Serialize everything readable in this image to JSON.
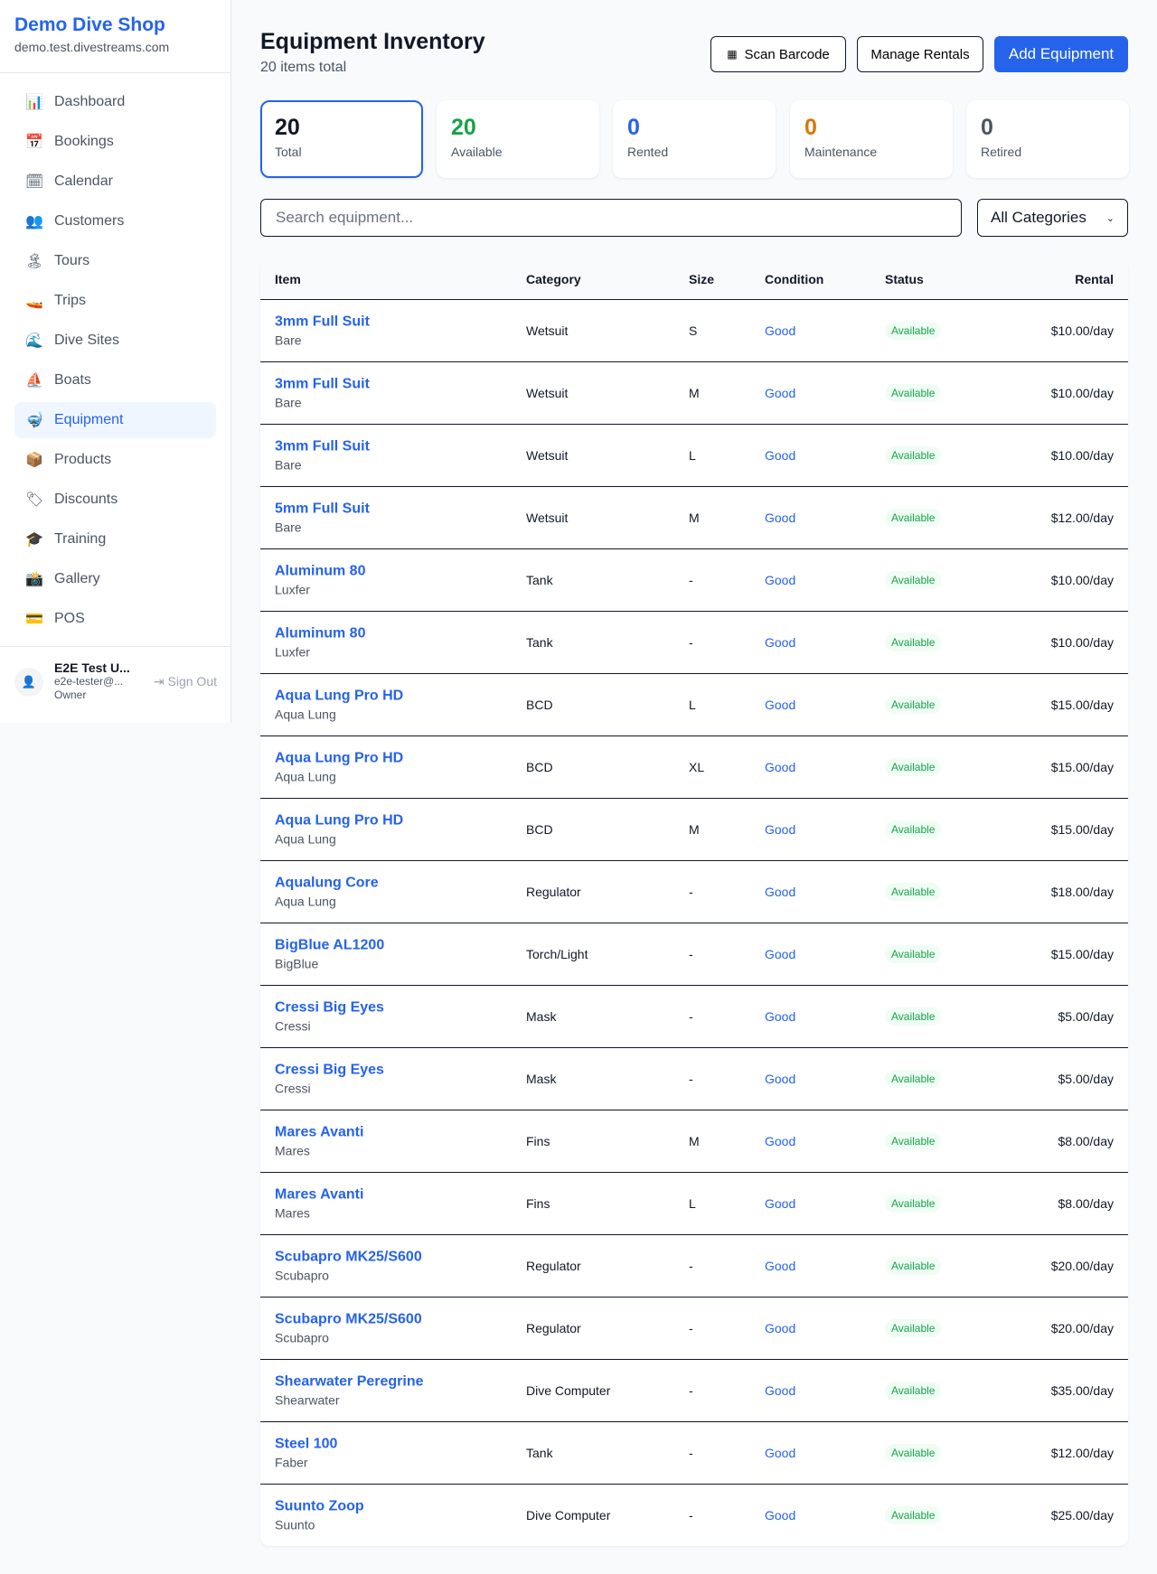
{
  "sidebar": {
    "shop_name": "Demo Dive Shop",
    "domain": "demo.test.divestreams.com",
    "items": [
      {
        "label": "Dashboard",
        "icon": "📊"
      },
      {
        "label": "Bookings",
        "icon": "📅"
      },
      {
        "label": "Calendar",
        "icon": "🗓"
      },
      {
        "label": "Customers",
        "icon": "👥"
      },
      {
        "label": "Tours",
        "icon": "🏝"
      },
      {
        "label": "Trips",
        "icon": "🚤"
      },
      {
        "label": "Dive Sites",
        "icon": "🌊"
      },
      {
        "label": "Boats",
        "icon": "⛵"
      },
      {
        "label": "Equipment",
        "icon": "🤿"
      },
      {
        "label": "Products",
        "icon": "📦"
      },
      {
        "label": "Discounts",
        "icon": "🏷"
      },
      {
        "label": "Training",
        "icon": "🎓"
      },
      {
        "label": "Gallery",
        "icon": "📸"
      },
      {
        "label": "POS",
        "icon": "💳"
      }
    ],
    "active": "Equipment",
    "user": {
      "name": "E2E Test U...",
      "email": "e2e-tester@...",
      "role": "Owner",
      "sign_out": "Sign Out"
    }
  },
  "header": {
    "title": "Equipment Inventory",
    "subtitle": "20 items total",
    "scan_label": "Scan Barcode",
    "manage_label": "Manage Rentals",
    "add_label": "Add Equipment"
  },
  "stats": [
    {
      "value": "20",
      "label": "Total",
      "color": "#111827"
    },
    {
      "value": "20",
      "label": "Available",
      "color": "#16a34a"
    },
    {
      "value": "0",
      "label": "Rented",
      "color": "#2563eb"
    },
    {
      "value": "0",
      "label": "Maintenance",
      "color": "#d97706"
    },
    {
      "value": "0",
      "label": "Retired",
      "color": "#4b5563"
    }
  ],
  "filters": {
    "search_placeholder": "Search equipment...",
    "category": "All Categories"
  },
  "table": {
    "headers": [
      "Item",
      "Category",
      "Size",
      "Condition",
      "Status",
      "Rental"
    ],
    "rows": [
      {
        "name": "3mm Full Suit",
        "brand": "Bare",
        "category": "Wetsuit",
        "size": "S",
        "condition": "Good",
        "status": "Available",
        "rental": "$10.00/day"
      },
      {
        "name": "3mm Full Suit",
        "brand": "Bare",
        "category": "Wetsuit",
        "size": "M",
        "condition": "Good",
        "status": "Available",
        "rental": "$10.00/day"
      },
      {
        "name": "3mm Full Suit",
        "brand": "Bare",
        "category": "Wetsuit",
        "size": "L",
        "condition": "Good",
        "status": "Available",
        "rental": "$10.00/day"
      },
      {
        "name": "5mm Full Suit",
        "brand": "Bare",
        "category": "Wetsuit",
        "size": "M",
        "condition": "Good",
        "status": "Available",
        "rental": "$12.00/day"
      },
      {
        "name": "Aluminum 80",
        "brand": "Luxfer",
        "category": "Tank",
        "size": "-",
        "condition": "Good",
        "status": "Available",
        "rental": "$10.00/day"
      },
      {
        "name": "Aluminum 80",
        "brand": "Luxfer",
        "category": "Tank",
        "size": "-",
        "condition": "Good",
        "status": "Available",
        "rental": "$10.00/day"
      },
      {
        "name": "Aqua Lung Pro HD",
        "brand": "Aqua Lung",
        "category": "BCD",
        "size": "L",
        "condition": "Good",
        "status": "Available",
        "rental": "$15.00/day"
      },
      {
        "name": "Aqua Lung Pro HD",
        "brand": "Aqua Lung",
        "category": "BCD",
        "size": "XL",
        "condition": "Good",
        "status": "Available",
        "rental": "$15.00/day"
      },
      {
        "name": "Aqua Lung Pro HD",
        "brand": "Aqua Lung",
        "category": "BCD",
        "size": "M",
        "condition": "Good",
        "status": "Available",
        "rental": "$15.00/day"
      },
      {
        "name": "Aqualung Core",
        "brand": "Aqua Lung",
        "category": "Regulator",
        "size": "-",
        "condition": "Good",
        "status": "Available",
        "rental": "$18.00/day"
      },
      {
        "name": "BigBlue AL1200",
        "brand": "BigBlue",
        "category": "Torch/Light",
        "size": "-",
        "condition": "Good",
        "status": "Available",
        "rental": "$15.00/day"
      },
      {
        "name": "Cressi Big Eyes",
        "brand": "Cressi",
        "category": "Mask",
        "size": "-",
        "condition": "Good",
        "status": "Available",
        "rental": "$5.00/day"
      },
      {
        "name": "Cressi Big Eyes",
        "brand": "Cressi",
        "category": "Mask",
        "size": "-",
        "condition": "Good",
        "status": "Available",
        "rental": "$5.00/day"
      },
      {
        "name": "Mares Avanti",
        "brand": "Mares",
        "category": "Fins",
        "size": "M",
        "condition": "Good",
        "status": "Available",
        "rental": "$8.00/day"
      },
      {
        "name": "Mares Avanti",
        "brand": "Mares",
        "category": "Fins",
        "size": "L",
        "condition": "Good",
        "status": "Available",
        "rental": "$8.00/day"
      },
      {
        "name": "Scubapro MK25/S600",
        "brand": "Scubapro",
        "category": "Regulator",
        "size": "-",
        "condition": "Good",
        "status": "Available",
        "rental": "$20.00/day"
      },
      {
        "name": "Scubapro MK25/S600",
        "brand": "Scubapro",
        "category": "Regulator",
        "size": "-",
        "condition": "Good",
        "status": "Available",
        "rental": "$20.00/day"
      },
      {
        "name": "Shearwater Peregrine",
        "brand": "Shearwater",
        "category": "Dive Computer",
        "size": "-",
        "condition": "Good",
        "status": "Available",
        "rental": "$35.00/day"
      },
      {
        "name": "Steel 100",
        "brand": "Faber",
        "category": "Tank",
        "size": "-",
        "condition": "Good",
        "status": "Available",
        "rental": "$12.00/day"
      },
      {
        "name": "Suunto Zoop",
        "brand": "Suunto",
        "category": "Dive Computer",
        "size": "-",
        "condition": "Good",
        "status": "Available",
        "rental": "$25.00/day"
      }
    ]
  }
}
